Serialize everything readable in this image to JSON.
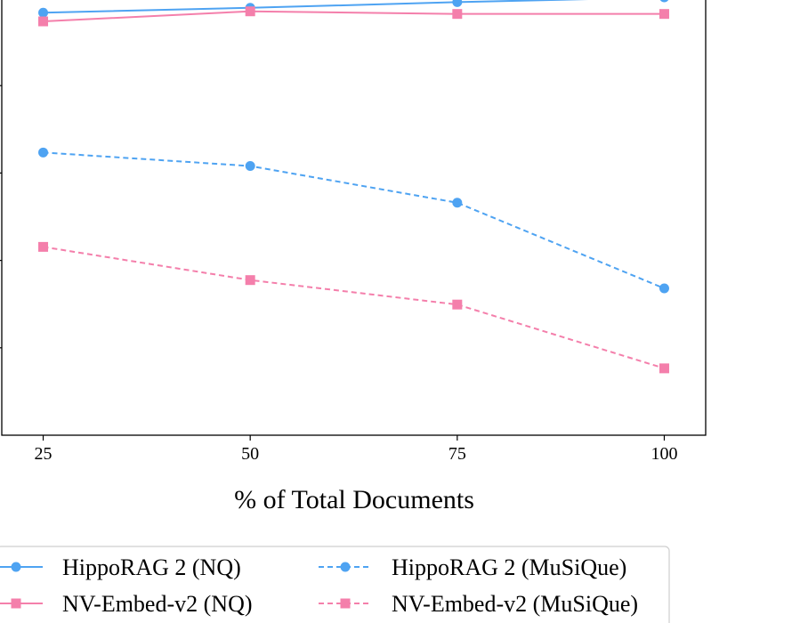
{
  "chart_data": {
    "type": "line",
    "xlabel": "% of Total Documents",
    "ylabel": "",
    "x": [
      25,
      50,
      75,
      100
    ],
    "xticks": [
      "25",
      "50",
      "75",
      "100"
    ],
    "ylim": [
      0,
      100
    ],
    "legend_position": "bottom",
    "series": [
      {
        "name": "HippoRAG 2 (NQ)",
        "values": [
          96.7,
          97.8,
          99.1,
          100.2
        ],
        "color": "#4ea3f2",
        "linestyle": "solid",
        "marker": "circle"
      },
      {
        "name": "NV-Embed-v2 (NQ)",
        "values": [
          94.7,
          97.0,
          96.4,
          96.4
        ],
        "color": "#f47fab",
        "linestyle": "solid",
        "marker": "square"
      },
      {
        "name": "HippoRAG 2 (MuSiQue)",
        "values": [
          64.7,
          61.6,
          53.2,
          33.6
        ],
        "color": "#4ea3f2",
        "linestyle": "dashed",
        "marker": "circle"
      },
      {
        "name": "NV-Embed-v2 (MuSiQue)",
        "values": [
          43.1,
          35.5,
          29.9,
          15.3
        ],
        "color": "#f47fab",
        "linestyle": "dashed",
        "marker": "square"
      }
    ]
  }
}
